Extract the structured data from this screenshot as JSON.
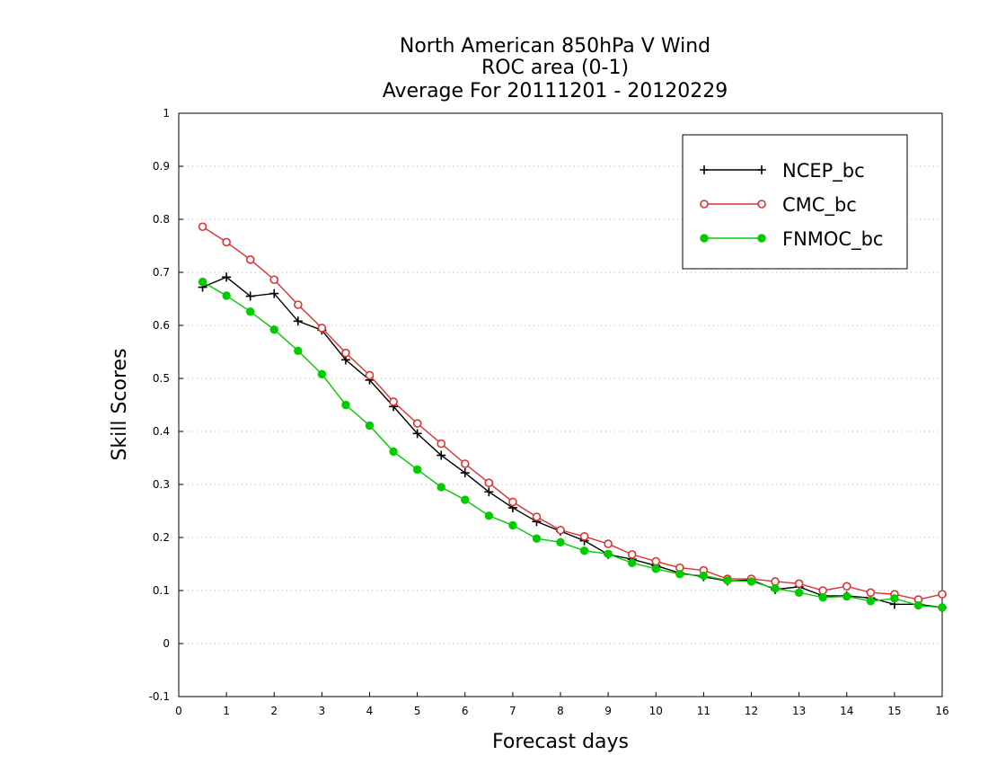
{
  "chart_data": {
    "type": "line",
    "title": [
      "North American 850hPa V Wind",
      "ROC area (0-1)",
      "Average For 20111201 - 20120229"
    ],
    "xlabel": "Forecast days",
    "ylabel": "Skill Scores",
    "xlim": [
      0,
      16
    ],
    "ylim": [
      -0.1,
      1
    ],
    "xticks": [
      0,
      1,
      2,
      3,
      4,
      5,
      6,
      7,
      8,
      9,
      10,
      11,
      12,
      13,
      14,
      15,
      16
    ],
    "xtick_labels": [
      "0",
      "1",
      "2",
      "3",
      "4",
      "5",
      "6",
      "7",
      "8",
      "9",
      "10",
      "11",
      "12",
      "13",
      "14",
      "15",
      "16"
    ],
    "yticks": [
      -0.1,
      0,
      0.1,
      0.2,
      0.3,
      0.4,
      0.5,
      0.6,
      0.7,
      0.8,
      0.9,
      1
    ],
    "ytick_labels": [
      "-0.1",
      "0",
      "0.1",
      "0.2",
      "0.3",
      "0.4",
      "0.5",
      "0.6",
      "0.7",
      "0.8",
      "0.9",
      "1"
    ],
    "grid": true,
    "legend_position": "top-right",
    "x": [
      0.5,
      1,
      1.5,
      2,
      2.5,
      3,
      3.5,
      4,
      4.5,
      5,
      5.5,
      6,
      6.5,
      7,
      7.5,
      8,
      8.5,
      9,
      9.5,
      10,
      10.5,
      11,
      11.5,
      12,
      12.5,
      13,
      13.5,
      14,
      14.5,
      15,
      15.5,
      16
    ],
    "series": [
      {
        "name": "NCEP_bc",
        "color": "#000000",
        "marker": "plus",
        "values": [
          0.672,
          0.691,
          0.655,
          0.66,
          0.608,
          0.591,
          0.535,
          0.497,
          0.447,
          0.396,
          0.355,
          0.322,
          0.286,
          0.256,
          0.23,
          0.212,
          0.194,
          0.168,
          0.159,
          0.147,
          0.133,
          0.126,
          0.118,
          0.12,
          0.102,
          0.107,
          0.09,
          0.09,
          0.086,
          0.074,
          0.074,
          0.068
        ]
      },
      {
        "name": "CMC_bc",
        "color": "#e03030",
        "marker": "open-circle",
        "values": [
          0.786,
          0.757,
          0.724,
          0.686,
          0.639,
          0.595,
          0.548,
          0.506,
          0.456,
          0.415,
          0.377,
          0.339,
          0.303,
          0.267,
          0.239,
          0.214,
          0.202,
          0.188,
          0.168,
          0.155,
          0.143,
          0.138,
          0.122,
          0.122,
          0.117,
          0.113,
          0.1,
          0.108,
          0.096,
          0.093,
          0.083,
          0.093
        ]
      },
      {
        "name": "FNMOC_bc",
        "color": "#00cc00",
        "marker": "filled-circle",
        "values": [
          0.682,
          0.656,
          0.626,
          0.592,
          0.552,
          0.508,
          0.45,
          0.411,
          0.362,
          0.328,
          0.295,
          0.271,
          0.241,
          0.223,
          0.198,
          0.191,
          0.175,
          0.169,
          0.152,
          0.141,
          0.131,
          0.128,
          0.119,
          0.117,
          0.104,
          0.096,
          0.087,
          0.089,
          0.08,
          0.085,
          0.072,
          0.068
        ]
      }
    ]
  }
}
